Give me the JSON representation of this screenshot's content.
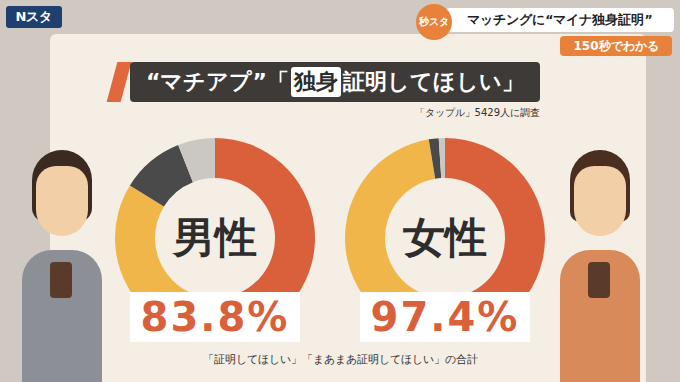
{
  "header": {
    "logo": "Nスタ",
    "badge": "秒スタ",
    "headline": "マッチングに“マイナ独身証明”",
    "subheadline": "150秒でわかる"
  },
  "title": "“マチアプ”「独身証明してほしい」",
  "title_highlight": "独身",
  "source": "「タップル」5429人に調査",
  "note": "「証明してほしい」「まあまあ証明してほしい」の合計",
  "chart_data": [
    {
      "type": "pie",
      "center_label": "男性",
      "values": [
        46.5,
        37.3,
        10.2,
        6.0
      ],
      "colors": [
        "#d9603a",
        "#f0b64a",
        "#4a4a4a",
        "#cbc7c2"
      ],
      "total": {
        "value": 83.8,
        "label": "83.8%"
      }
    },
    {
      "type": "pie",
      "center_label": "女性",
      "values": [
        50.8,
        46.6,
        1.6,
        1.0
      ],
      "colors": [
        "#d9603a",
        "#f0b64a",
        "#4a4a4a",
        "#cbc7c2"
      ],
      "total": {
        "value": 97.4,
        "label": "97.4%"
      }
    }
  ]
}
